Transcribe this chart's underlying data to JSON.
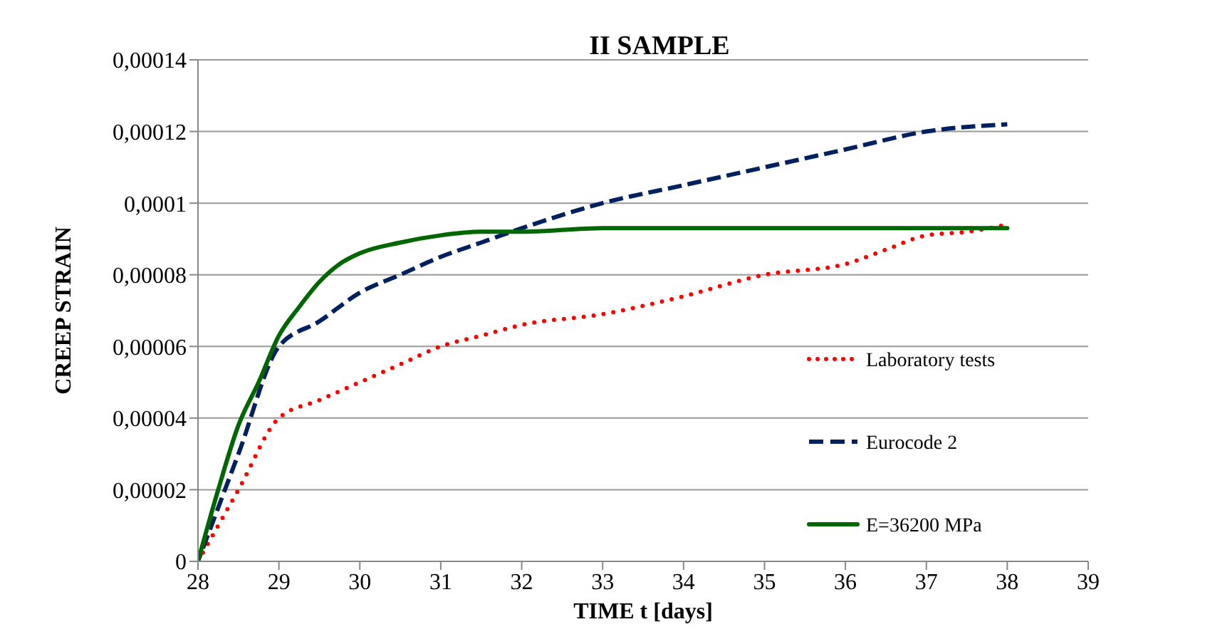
{
  "chart_data": {
    "type": "line",
    "title": "II SAMPLE",
    "xlabel": "TIME t [days]",
    "ylabel": "CREEP  STRAIN",
    "xlim": [
      28,
      39
    ],
    "xticks": [
      28,
      29,
      30,
      31,
      32,
      33,
      34,
      35,
      36,
      37,
      38,
      39
    ],
    "ylim": [
      0,
      0.00014
    ],
    "yticks": [
      0,
      {
        "value": 2e-05,
        "label": "0,00002"
      },
      {
        "value": 4e-05,
        "label": "0,00004"
      },
      {
        "value": 6e-05,
        "label": "0,00006"
      },
      {
        "value": 8e-05,
        "label": "0,00008"
      },
      {
        "value": 0.0001,
        "label": "0,0001"
      },
      {
        "value": 0.00012,
        "label": "0,00012"
      },
      {
        "value": 0.00014,
        "label": "0,00014"
      }
    ],
    "grid": "y",
    "legend": "right",
    "series": [
      {
        "name": "Laboratory tests",
        "color": "#ff0000",
        "line_style": "dotted",
        "x": [
          28,
          28.5,
          29,
          29.5,
          30,
          30.5,
          31,
          31.5,
          32,
          33,
          34,
          35,
          36,
          36.5,
          37,
          37.5,
          38
        ],
        "values": [
          0,
          2e-05,
          4e-05,
          4.5e-05,
          5e-05,
          5.5e-05,
          6e-05,
          6.3e-05,
          6.6e-05,
          6.9e-05,
          7.4e-05,
          8e-05,
          8.3e-05,
          8.7e-05,
          9.1e-05,
          9.2e-05,
          9.4e-05
        ]
      },
      {
        "name": "Eurocode 2",
        "color": "#002060",
        "line_style": "dashed",
        "x": [
          28,
          28.5,
          29,
          29.5,
          30,
          30.5,
          31,
          31.5,
          32,
          33,
          34,
          35,
          36,
          37,
          38
        ],
        "values": [
          0,
          3e-05,
          6e-05,
          6.7e-05,
          7.5e-05,
          8e-05,
          8.5e-05,
          8.9e-05,
          9.3e-05,
          0.0001,
          0.000105,
          0.00011,
          0.000115,
          0.00012,
          0.000122
        ]
      },
      {
        "name": "E=36200 MPa",
        "color": "#006600",
        "line_style": "solid",
        "x": [
          28,
          28.25,
          28.5,
          28.75,
          29,
          29.25,
          29.5,
          29.75,
          30,
          30.5,
          31,
          31.5,
          32,
          33,
          38
        ],
        "values": [
          0,
          2e-05,
          3.8e-05,
          5e-05,
          6.3e-05,
          7.1e-05,
          7.8e-05,
          8.3e-05,
          8.6e-05,
          8.9e-05,
          9.1e-05,
          9.2e-05,
          9.2e-05,
          9.3e-05,
          9.3e-05
        ]
      }
    ]
  }
}
